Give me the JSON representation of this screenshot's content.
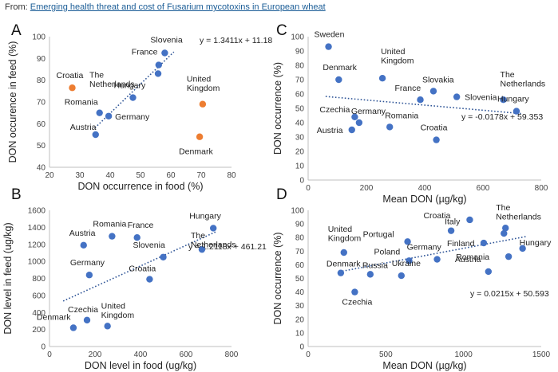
{
  "source": {
    "prefix": "From: ",
    "link_text": "Emerging health threat and cost of Fusarium mycotoxins in European wheat"
  },
  "colors": {
    "point": "#4472c4",
    "highlight": "#ed7d31",
    "trend": "#2f5597",
    "axis": "#bfbfbf"
  },
  "chart_data": [
    {
      "panel_label": "A",
      "type": "scatter",
      "xlabel": "DON occurrence in food (%)",
      "ylabel": "DON occurence in feed (%)",
      "xlim": [
        20,
        80
      ],
      "ylim": [
        40,
        100
      ],
      "xticks": [
        "20",
        "30",
        "40",
        "50",
        "60",
        "70",
        "80"
      ],
      "yticks": [
        "40",
        "50",
        "60",
        "70",
        "80",
        "90",
        "100"
      ],
      "equation": "y = 1.3411x + 11.18",
      "trendline": {
        "slope": 1.3411,
        "intercept": 11.18,
        "x_from": 35,
        "x_to": 61
      },
      "points": [
        {
          "label": "Slovenia",
          "x": 58,
          "y": 92.5,
          "group": "main"
        },
        {
          "label": "France",
          "x": 56,
          "y": 87,
          "group": "main"
        },
        {
          "label": "The Netherlands",
          "x": 55.8,
          "y": 83,
          "group": "main"
        },
        {
          "label": "Hungary",
          "x": 47.5,
          "y": 72,
          "group": "main"
        },
        {
          "label": "Romania",
          "x": 36.5,
          "y": 65,
          "group": "main"
        },
        {
          "label": "Germany",
          "x": 39.5,
          "y": 63.5,
          "group": "main"
        },
        {
          "label": "Austria",
          "x": 35.2,
          "y": 55,
          "group": "main"
        },
        {
          "label": "Croatia",
          "x": 27.5,
          "y": 76.5,
          "group": "outlier"
        },
        {
          "label": "United Kingdom",
          "x": 70.5,
          "y": 69,
          "group": "outlier"
        },
        {
          "label": "Denmark",
          "x": 69.5,
          "y": 54,
          "group": "outlier"
        }
      ]
    },
    {
      "panel_label": "B",
      "type": "scatter",
      "xlabel": "DON level in food (ug/kg)",
      "ylabel": "DON level in feed (ug/kg)",
      "xlim": [
        0,
        800
      ],
      "ylim": [
        0,
        1600
      ],
      "xticks": [
        "0",
        "200",
        "400",
        "600",
        "800"
      ],
      "yticks": [
        "0",
        "200",
        "400",
        "600",
        "800",
        "1000",
        "1200",
        "1400",
        "1600"
      ],
      "equation": "y = 1.2118x + 461.21",
      "trendline": {
        "slope": 1.2118,
        "intercept": 461.21,
        "x_from": 60,
        "x_to": 730
      },
      "points": [
        {
          "label": "Hungary",
          "x": 720,
          "y": 1390
        },
        {
          "label": "The Netherlands",
          "x": 670,
          "y": 1140
        },
        {
          "label": "Romania",
          "x": 275,
          "y": 1295
        },
        {
          "label": "France",
          "x": 385,
          "y": 1280
        },
        {
          "label": "Austria",
          "x": 150,
          "y": 1190
        },
        {
          "label": "Slovenia",
          "x": 500,
          "y": 1050
        },
        {
          "label": "Croatia",
          "x": 440,
          "y": 790
        },
        {
          "label": "Germany",
          "x": 175,
          "y": 840
        },
        {
          "label": "Czechia",
          "x": 165,
          "y": 310
        },
        {
          "label": "United Kingdom",
          "x": 255,
          "y": 240
        },
        {
          "label": "Denmark",
          "x": 105,
          "y": 220
        }
      ]
    },
    {
      "panel_label": "C",
      "type": "scatter",
      "xlabel": "Mean DON (µg/kg)",
      "ylabel": "DON occurrence (%)",
      "xlim": [
        0,
        800
      ],
      "ylim": [
        0,
        100
      ],
      "xticks": [
        "0",
        "200",
        "400",
        "600",
        "800"
      ],
      "yticks": [
        "0",
        "10",
        "20",
        "30",
        "40",
        "50",
        "60",
        "70",
        "80",
        "90",
        "100"
      ],
      "equation": "y = -0.0178x + 59.353",
      "trendline": {
        "slope": -0.0178,
        "intercept": 59.353,
        "x_from": 60,
        "x_to": 730
      },
      "points": [
        {
          "label": "Sweden",
          "x": 70,
          "y": 93
        },
        {
          "label": "Denmark",
          "x": 105,
          "y": 70
        },
        {
          "label": "United Kingdom",
          "x": 255,
          "y": 71
        },
        {
          "label": "Slovakia",
          "x": 430,
          "y": 62
        },
        {
          "label": "France",
          "x": 385,
          "y": 56
        },
        {
          "label": "Slovenia",
          "x": 510,
          "y": 58
        },
        {
          "label": "The Netherlands",
          "x": 670,
          "y": 56
        },
        {
          "label": "Hungary",
          "x": 715,
          "y": 48
        },
        {
          "label": "Germany",
          "x": 175,
          "y": 40
        },
        {
          "label": "Czechia",
          "x": 160,
          "y": 44
        },
        {
          "label": "Romania",
          "x": 280,
          "y": 37
        },
        {
          "label": "Austria",
          "x": 150,
          "y": 35
        },
        {
          "label": "Croatia",
          "x": 440,
          "y": 28
        }
      ]
    },
    {
      "panel_label": "D",
      "type": "scatter",
      "xlabel": "Mean DON (µg/kg)",
      "ylabel": "DON occurrence (%)",
      "xlim": [
        0,
        1500
      ],
      "ylim": [
        0,
        100
      ],
      "xticks": [
        "0",
        "500",
        "1000",
        "1500"
      ],
      "yticks": [
        "0",
        "10",
        "20",
        "30",
        "40",
        "50",
        "60",
        "70",
        "80",
        "90",
        "100"
      ],
      "equation": "y = 0.0215x + 50.593",
      "trendline": {
        "slope": 0.0215,
        "intercept": 50.593,
        "x_from": 200,
        "x_to": 1400
      },
      "points": [
        {
          "label": "Croatia",
          "x": 1040,
          "y": 93
        },
        {
          "label": "Italy",
          "x": 920,
          "y": 85
        },
        {
          "label": "The Netherlands",
          "x": 1270,
          "y": 87
        },
        {
          "label": "",
          "x": 1260,
          "y": 83
        },
        {
          "label": "Portugal",
          "x": 640,
          "y": 77
        },
        {
          "label": "Finland",
          "x": 1130,
          "y": 76
        },
        {
          "label": "Hungary",
          "x": 1380,
          "y": 72
        },
        {
          "label": "United Kingdom",
          "x": 230,
          "y": 69
        },
        {
          "label": "Romania",
          "x": 1290,
          "y": 66
        },
        {
          "label": "Poland",
          "x": 650,
          "y": 63
        },
        {
          "label": "Germany",
          "x": 830,
          "y": 64
        },
        {
          "label": "Austria",
          "x": 1160,
          "y": 55
        },
        {
          "label": "Denmark",
          "x": 210,
          "y": 54
        },
        {
          "label": "Russia",
          "x": 400,
          "y": 53
        },
        {
          "label": "Ukraine",
          "x": 600,
          "y": 52
        },
        {
          "label": "Czechia",
          "x": 300,
          "y": 40
        }
      ]
    }
  ]
}
